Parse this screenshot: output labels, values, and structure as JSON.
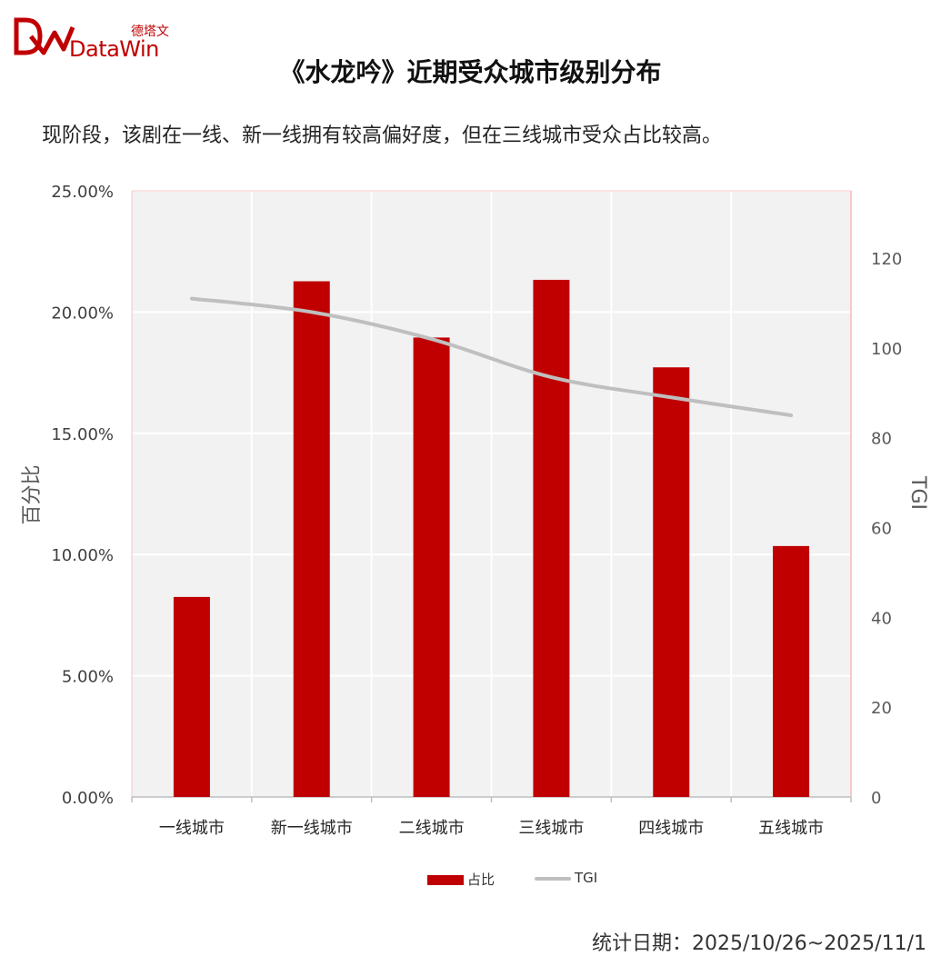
{
  "brand": {
    "name_cn": "德塔文",
    "name_en": "DataWin",
    "color": "#c00000"
  },
  "title": "《水龙吟》近期受众城市级别分布",
  "subtitle": "现阶段，该剧在一线、新一线拥有较高偏好度，但在三线城市受众占比较高。",
  "footer": "统计日期：2025/10/26~2025/11/1",
  "chart_data": {
    "type": "bar",
    "categories": [
      "一线城市",
      "新一线城市",
      "二线城市",
      "三线城市",
      "四线城市",
      "五线城市"
    ],
    "series": [
      {
        "name": "占比",
        "type": "bar",
        "axis": "left",
        "color": "#c00000",
        "values": [
          8.25,
          21.27,
          18.95,
          21.33,
          17.72,
          10.35
        ]
      },
      {
        "name": "TGI",
        "type": "line",
        "axis": "right",
        "color": "#bfbfbf",
        "values": [
          111,
          108,
          102,
          93.5,
          89,
          85
        ]
      }
    ],
    "ylabel": "百分比",
    "y2label": "TGI",
    "ylim": [
      0,
      25
    ],
    "y2lim": [
      0,
      135
    ],
    "yticks": [
      "0.00%",
      "5.00%",
      "10.00%",
      "15.00%",
      "20.00%",
      "25.00%"
    ],
    "y2ticks": [
      "0",
      "20",
      "40",
      "60",
      "80",
      "100",
      "120"
    ],
    "grid": true,
    "legend": "bottom",
    "plot_background": "#f2f2f2"
  }
}
